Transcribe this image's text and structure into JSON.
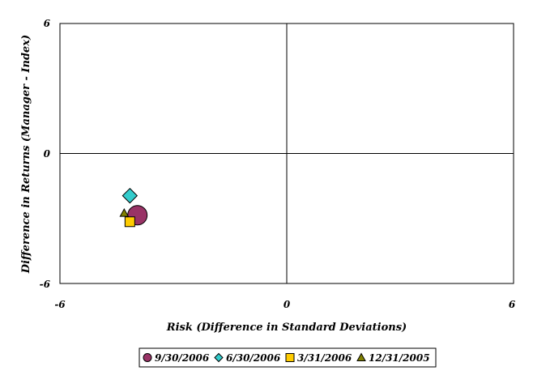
{
  "chart_data": {
    "type": "scatter",
    "title": "",
    "xlabel": "Risk (Difference in Standard Deviations)",
    "ylabel": "Difference in Returns (Manager - Index)",
    "xlim": [
      -6,
      6
    ],
    "ylim": [
      -6,
      6
    ],
    "xticks": [
      "-6",
      "0",
      "6"
    ],
    "yticks": [
      "6",
      "0",
      "-6"
    ],
    "grid": false,
    "quadrant_lines": true,
    "legend_position": "bottom",
    "series": [
      {
        "name": "9/30/2006",
        "marker": "circle",
        "color": "#993366",
        "x": -3.95,
        "y": -2.85
      },
      {
        "name": "6/30/2006",
        "marker": "diamond",
        "color": "#33CCCC",
        "x": -4.15,
        "y": -1.95
      },
      {
        "name": "3/31/2006",
        "marker": "square",
        "color": "#FFCC00",
        "x": -4.15,
        "y": -3.15
      },
      {
        "name": "12/31/2005",
        "marker": "triangle",
        "color": "#808000",
        "x": -4.3,
        "y": -2.75
      }
    ]
  }
}
